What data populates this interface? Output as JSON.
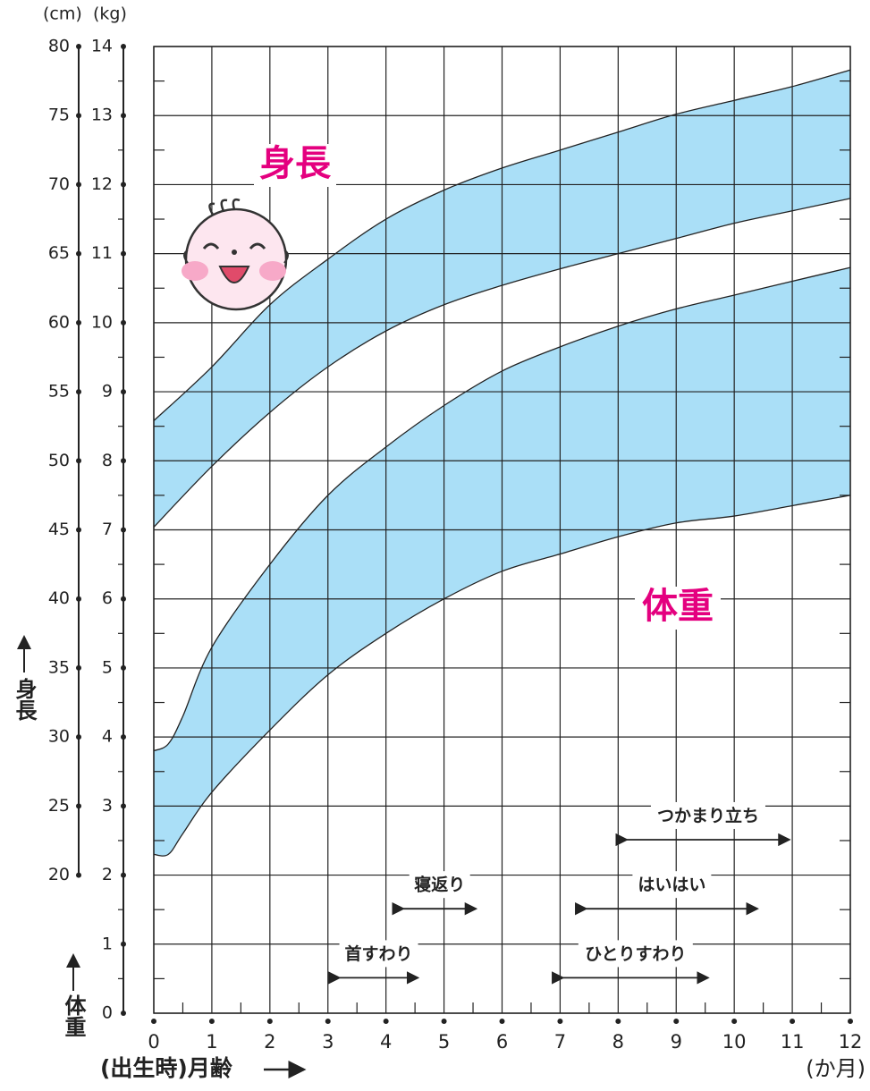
{
  "chart_data": {
    "type": "band",
    "units": [
      "(cm)",
      "(kg)"
    ],
    "y_label": "身長",
    "y2_label": "体重",
    "x_label": "(出生時)月齢",
    "x_unit": "(か月)",
    "xlim": [
      0,
      12
    ],
    "xticks": [
      0,
      1,
      2,
      3,
      4,
      5,
      6,
      7,
      8,
      9,
      10,
      11,
      12
    ],
    "ylim": [
      0,
      14
    ],
    "yticks": [
      0,
      1,
      2,
      3,
      4,
      5,
      6,
      7,
      8,
      9,
      10,
      11,
      12,
      13,
      14
    ],
    "y2lim": [
      10,
      80
    ],
    "y2ticks": [
      20,
      25,
      30,
      35,
      40,
      45,
      50,
      55,
      60,
      65,
      70,
      75,
      80
    ],
    "grid": true,
    "series": [
      {
        "name": "身長",
        "color": "#aadff7",
        "label_color": "#e4007f",
        "axis": "y2",
        "x": [
          0,
          1,
          2,
          3,
          4,
          5,
          6,
          7,
          8,
          9,
          10,
          11,
          12
        ],
        "high": [
          52.9,
          56.8,
          61.3,
          64.6,
          67.5,
          69.6,
          71.2,
          72.5,
          73.8,
          75.1,
          76.1,
          77.1,
          78.3
        ],
        "low": [
          45.2,
          49.6,
          53.5,
          56.8,
          59.4,
          61.3,
          62.7,
          63.9,
          65.0,
          66.1,
          67.2,
          68.1,
          69.0
        ]
      },
      {
        "name": "体重",
        "color": "#aadff7",
        "label_color": "#e4007f",
        "axis": "y",
        "x": [
          0,
          0.25,
          0.5,
          1,
          2,
          3,
          4,
          5,
          6,
          7,
          8,
          9,
          10,
          11,
          12
        ],
        "high": [
          3.8,
          3.9,
          4.3,
          5.3,
          6.5,
          7.5,
          8.2,
          8.8,
          9.3,
          9.65,
          9.95,
          10.2,
          10.4,
          10.6,
          10.8
        ],
        "low": [
          2.3,
          2.3,
          2.6,
          3.2,
          4.1,
          4.9,
          5.5,
          6.0,
          6.4,
          6.65,
          6.9,
          7.1,
          7.2,
          7.35,
          7.5
        ]
      }
    ],
    "milestones": [
      {
        "label": "首すわり",
        "start": 3.2,
        "end": 4.55
      },
      {
        "label": "寝返り",
        "start": 4.3,
        "end": 5.55
      },
      {
        "label": "ひとりすわり",
        "start": 7.05,
        "end": 9.55
      },
      {
        "label": "はいはい",
        "start": 7.45,
        "end": 10.4
      },
      {
        "label": "つかまり立ち",
        "start": 8.15,
        "end": 10.95
      }
    ]
  }
}
